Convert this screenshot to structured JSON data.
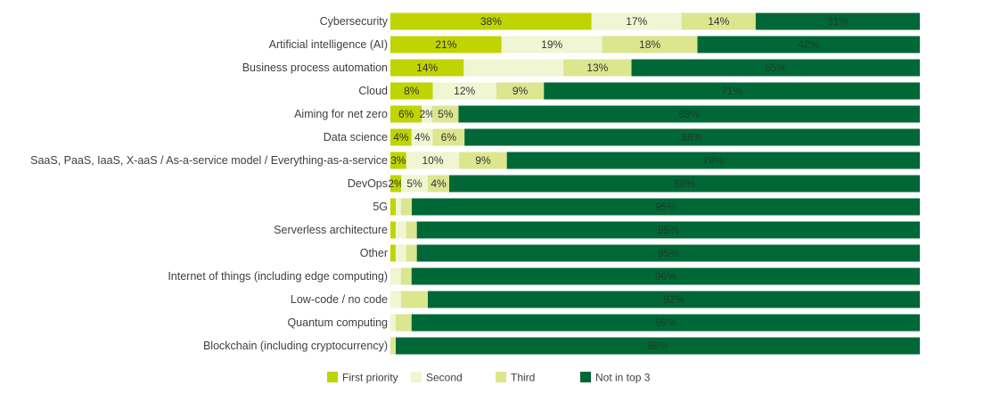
{
  "chart_data": {
    "type": "bar",
    "orientation": "horizontal",
    "stacked": true,
    "title": "",
    "xlabel": "",
    "ylabel": "",
    "xlim": [
      0,
      100
    ],
    "grid": false,
    "legend_position": "bottom",
    "categories": [
      "Cybersecurity",
      "Artificial intelligence (AI)",
      "Business process automation",
      "Cloud",
      "Aiming for net zero",
      "Data science",
      "SaaS, PaaS, IaaS, X-aaS / As-a-service model / Everything-as-a-service",
      "DevOps",
      "5G",
      "Serverless architecture",
      "Other",
      "Internet of things (including edge computing)",
      "Low-code / no code",
      "Quantum computing",
      "Blockchain (including cryptocurrency)"
    ],
    "series": [
      {
        "name": "First priority",
        "color": "#bfd400",
        "values": [
          38,
          21,
          14,
          8,
          6,
          4,
          3,
          2,
          1,
          1,
          1,
          0,
          0,
          0,
          0
        ],
        "labels": [
          "38%",
          "21%",
          "14%",
          "8%",
          "6%",
          "4%",
          "3%",
          "2%",
          "",
          "",
          "",
          "",
          "",
          "",
          ""
        ]
      },
      {
        "name": "Second",
        "color": "#f0f5d2",
        "values": [
          17,
          19,
          19,
          12,
          2,
          4,
          10,
          5,
          1,
          2,
          2,
          2,
          2,
          1,
          0
        ],
        "labels": [
          "17%",
          "19%",
          "",
          "12%",
          "2%",
          "4%",
          "10%",
          "5%",
          "",
          "",
          "",
          "",
          "",
          "",
          ""
        ]
      },
      {
        "name": "Third",
        "color": "#dbe68f",
        "values": [
          14,
          18,
          13,
          9,
          5,
          6,
          9,
          4,
          2,
          2,
          2,
          2,
          5,
          3,
          1
        ],
        "labels": [
          "14%",
          "18%",
          "13%",
          "9%",
          "5%",
          "6%",
          "9%",
          "4%",
          "",
          "",
          "",
          "",
          "",
          "",
          ""
        ]
      },
      {
        "name": "Not in top 3",
        "color": "#006837",
        "values": [
          31,
          42,
          55,
          71,
          88,
          86,
          78,
          88,
          95,
          95,
          95,
          96,
          92,
          96,
          98
        ],
        "labels": [
          "31%",
          "42%",
          "55%",
          "71%",
          "88%",
          "86%",
          "78%",
          "88%",
          "95%",
          "95%",
          "95%",
          "96%",
          "92%",
          "96%",
          "98%"
        ]
      }
    ]
  }
}
